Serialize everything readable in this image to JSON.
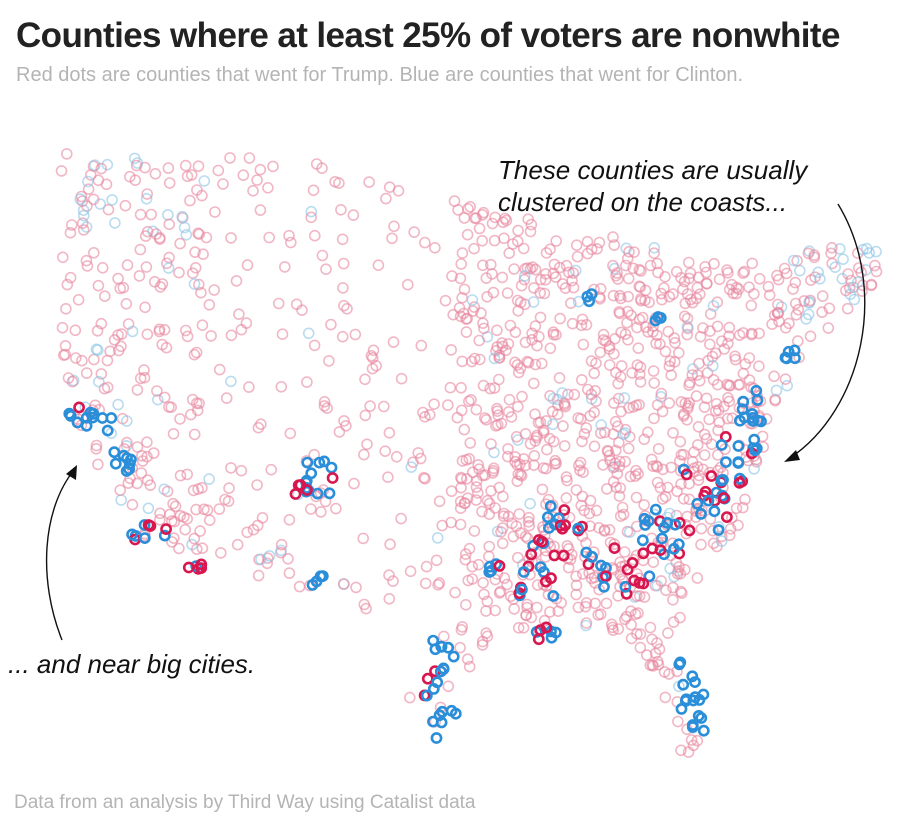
{
  "header": {
    "title": "Counties where at least 25% of voters are nonwhite",
    "subtitle": "Red dots are counties that went for Trump. Blue are counties that went for Clinton."
  },
  "annotations": {
    "coasts": {
      "line1": "These counties are usually",
      "line2": "clustered on the coasts..."
    },
    "cities": "... and near big cities."
  },
  "footer": {
    "source": "Data from an analysis by Third Way using Catalist data"
  },
  "colors": {
    "trump": "#d8174f",
    "clinton": "#2a8ed9",
    "trump_faint": "#e8879f",
    "clinton_faint": "#8cc4e6"
  }
}
